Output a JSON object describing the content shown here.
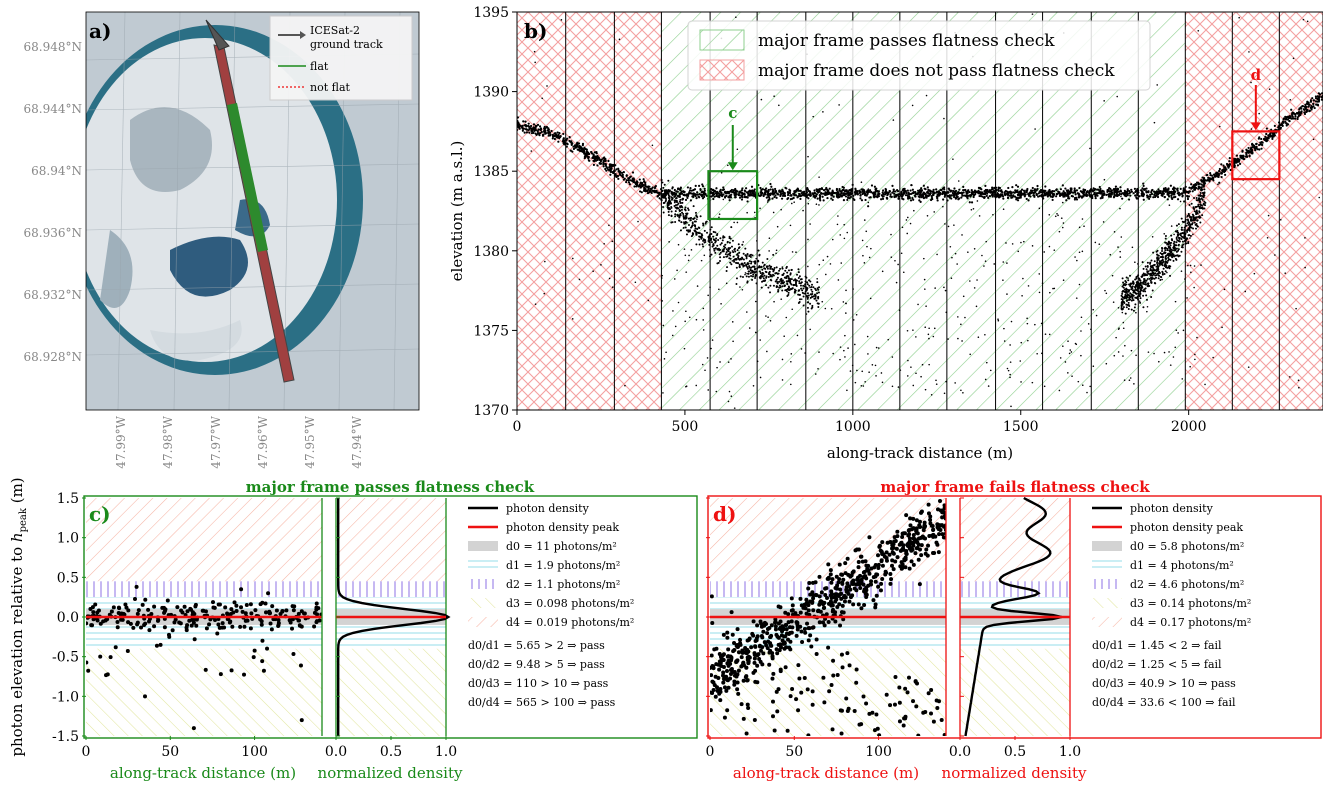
{
  "panels": {
    "a": {
      "label": "a)",
      "legend": [
        "ICESat-2\nground track",
        "flat",
        "not flat"
      ],
      "lat_ticks": [
        "68.948°N",
        "68.944°N",
        "68.94°N",
        "68.936°N",
        "68.932°N",
        "68.928°N"
      ],
      "lon_ticks": [
        "47.99°W",
        "47.98°W",
        "47.97°W",
        "47.96°W",
        "47.95°W",
        "47.94°W"
      ]
    },
    "b": {
      "label": "b)",
      "legend": [
        "major frame passes flatness check",
        "major frame does not pass flatness check"
      ],
      "boxes": {
        "c": "c",
        "d": "d"
      }
    },
    "c": {
      "label": "c)",
      "title": "major frame passes flatness check",
      "title_color": "#1a8a1a",
      "xlabel_left": "along-track distance (m)",
      "xlabel_right": "normalized density",
      "legend": [
        "photon density",
        "photon density peak",
        "d0 = 11 photons/m²",
        "d1 = 1.9 photons/m²",
        "d2 = 1.1 photons/m²",
        "d3 = 0.098 photons/m²",
        "d4 = 0.019 photons/m²"
      ],
      "ratios": [
        "d0/d1 = 5.65 > 2 ⇒ pass",
        "d0/d2 = 9.48 > 5 ⇒ pass",
        "d0/d3 = 110 > 10 ⇒ pass",
        "d0/d4 = 565 > 100 ⇒ pass"
      ]
    },
    "d": {
      "label": "d)",
      "title": "major frame fails flatness check",
      "title_color": "#ee1111",
      "xlabel_left": "along-track distance (m)",
      "xlabel_right": "normalized density",
      "legend": [
        "photon density",
        "photon density peak",
        "d0 = 5.8 photons/m²",
        "d1 = 4 photons/m²",
        "d2 = 4.6 photons/m²",
        "d3 = 0.14 photons/m²",
        "d4 = 0.17 photons/m²"
      ],
      "ratios": [
        "d0/d1 = 1.45 < 2 ⇒ fail",
        "d0/d2 = 1.25 < 5 ⇒ fail",
        "d0/d3 = 40.9 > 10 ⇒ pass",
        "d0/d4 = 33.6 < 100 ⇒ fail"
      ]
    }
  },
  "shared_ylabel": "photon elevation relative to h_peak (m)",
  "colors": {
    "pass": "#1a8a1a",
    "fail": "#ee1111",
    "lake": "#2b6f85",
    "hatch_pass": "#8fcf8f",
    "hatch_fail": "#f3a0a0"
  },
  "chart_data": [
    {
      "type": "scatter",
      "panel": "b",
      "xlabel": "along-track distance (m)",
      "ylabel": "elevation (m a.s.l.)",
      "xlim": [
        0,
        2400
      ],
      "ylim": [
        1370,
        1395
      ],
      "xticks": [
        0,
        500,
        1000,
        1500,
        2000
      ],
      "yticks": [
        1370,
        1375,
        1380,
        1385,
        1390,
        1395
      ],
      "frame_boundaries": [
        0,
        145,
        290,
        430,
        575,
        715,
        860,
        1000,
        1140,
        1280,
        1425,
        1565,
        1710,
        1850,
        1990,
        2130,
        2270,
        2400
      ],
      "frame_status": [
        "fail",
        "fail",
        "fail",
        "pass",
        "pass",
        "pass",
        "pass",
        "pass",
        "pass",
        "pass",
        "pass",
        "pass",
        "pass",
        "pass",
        "fail",
        "fail",
        "fail"
      ],
      "surface_profile": {
        "x": [
          0,
          100,
          200,
          300,
          400,
          430,
          1990,
          2100,
          2200,
          2300,
          2400
        ],
        "y": [
          1388.0,
          1387.4,
          1386.3,
          1384.9,
          1383.8,
          1383.6,
          1383.6,
          1385.0,
          1386.5,
          1388.3,
          1389.7
        ]
      },
      "lakebed_profile": {
        "x": [
          430,
          550,
          700,
          850,
          900,
          1800,
          1850,
          1990,
          2050
        ],
        "y": [
          1383.5,
          1381.0,
          1379.0,
          1377.6,
          1377.0,
          1377.0,
          1377.6,
          1381.0,
          1383.5
        ]
      },
      "box_c": {
        "x": [
          570,
          715
        ],
        "y": [
          1382,
          1385
        ]
      },
      "box_d": {
        "x": [
          2130,
          2270
        ],
        "y": [
          1384.5,
          1387.5
        ]
      }
    },
    {
      "type": "scatter",
      "panel": "c",
      "xlim": [
        0,
        140
      ],
      "ylim": [
        -1.5,
        1.5
      ],
      "xticks": [
        0,
        50,
        100
      ],
      "yticks": [
        -1.5,
        -1.0,
        -0.5,
        0.0,
        0.5,
        1.0,
        1.5
      ],
      "density_xlim": [
        0,
        1
      ],
      "density_xticks": [
        0.0,
        0.5,
        1.0
      ],
      "peak_y": 0.0,
      "bands": {
        "d0": [
          -0.1,
          0.1
        ],
        "d1": [
          -0.4,
          -0.1,
          0.1,
          0.25
        ],
        "d2": [
          0.25,
          0.45
        ],
        "d3": [
          -1.5,
          -0.4
        ],
        "d4": [
          0.45,
          1.5
        ]
      }
    },
    {
      "type": "scatter",
      "panel": "d",
      "xlim": [
        0,
        140
      ],
      "ylim": [
        -1.5,
        1.5
      ],
      "xticks": [
        0,
        50,
        100
      ],
      "yticks": [
        -1.5,
        -1.0,
        -0.5,
        0.0,
        0.5,
        1.0,
        1.5
      ],
      "density_xlim": [
        0,
        1
      ],
      "density_xticks": [
        0.0,
        0.5,
        1.0
      ],
      "peak_y": 0.0,
      "trend": {
        "x": [
          0,
          140
        ],
        "y": [
          -0.8,
          1.2
        ]
      }
    }
  ]
}
